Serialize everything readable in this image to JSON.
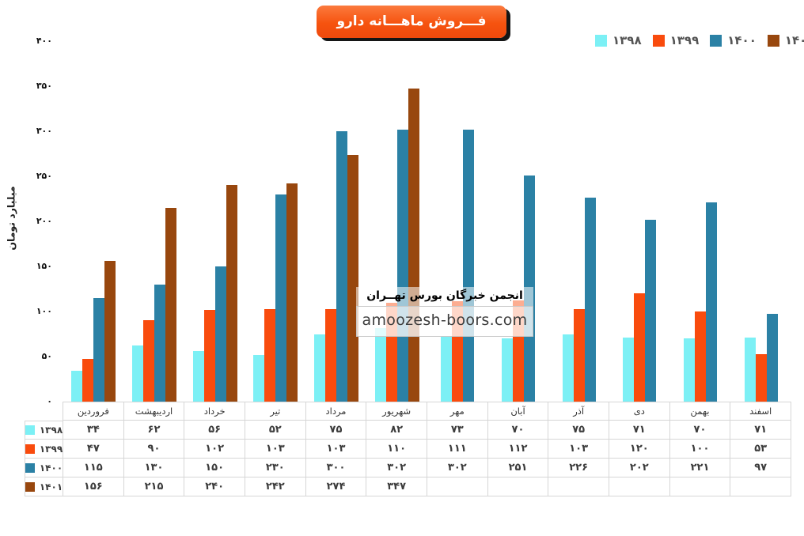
{
  "title": "فـــروش ماهـــانه دارو",
  "y_axis_title": "میلیارد تومان",
  "watermark": {
    "org": "انجمن خبرگان بورس تهــران",
    "site": "amoozesh-boors.com"
  },
  "chart_data": {
    "type": "bar",
    "title": "فروش ماهانه دارو",
    "ylabel": "میلیارد تومان",
    "ylim": [
      0,
      400
    ],
    "y_ticks": [
      0,
      50,
      100,
      150,
      200,
      250,
      300,
      350,
      400
    ],
    "grid": false,
    "legend_position": "top-right",
    "categories": [
      "فروردین",
      "اردیبهشت",
      "خرداد",
      "تیر",
      "مرداد",
      "شهریور",
      "مهر",
      "آبان",
      "آذر",
      "دی",
      "بهمن",
      "اسفند"
    ],
    "series": [
      {
        "name": "1398",
        "label": "۱۳۹۸",
        "color": "#7cf0f5",
        "values": [
          34,
          62,
          56,
          52,
          75,
          82,
          73,
          70,
          75,
          71,
          70,
          71
        ]
      },
      {
        "name": "1399",
        "label": "۱۳۹۹",
        "color": "#f94b0d",
        "values": [
          47,
          90,
          102,
          103,
          103,
          110,
          111,
          112,
          103,
          120,
          100,
          53
        ]
      },
      {
        "name": "1400",
        "label": "۱۴۰۰",
        "color": "#2b81a5",
        "values": [
          115,
          130,
          150,
          230,
          300,
          302,
          302,
          251,
          226,
          202,
          221,
          97
        ]
      },
      {
        "name": "1401",
        "label": "۱۴۰۱",
        "color": "#98470e",
        "values": [
          156,
          215,
          240,
          242,
          274,
          347,
          null,
          null,
          null,
          null,
          null,
          null
        ]
      }
    ]
  }
}
